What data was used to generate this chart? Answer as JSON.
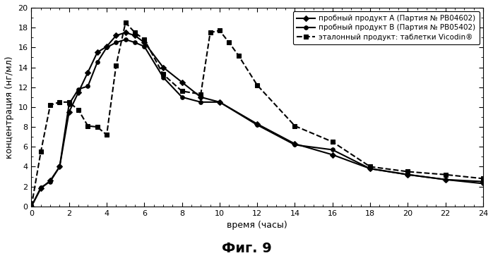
{
  "series_A": {
    "label": "пробный продукт А (Партия № РВ04602)",
    "x": [
      0,
      0.5,
      1,
      1.5,
      2,
      2.5,
      3,
      3.5,
      4,
      4.5,
      5,
      5.5,
      6,
      7,
      8,
      9,
      10,
      12,
      14,
      16,
      18,
      20,
      22,
      24
    ],
    "y": [
      0,
      1.8,
      2.6,
      4.0,
      9.5,
      11.5,
      13.5,
      15.5,
      16.1,
      17.2,
      17.5,
      17.2,
      16.5,
      14.0,
      12.5,
      11.0,
      10.5,
      8.3,
      6.3,
      5.2,
      3.8,
      3.2,
      2.7,
      2.5
    ],
    "color": "#000000",
    "linestyle": "-",
    "marker": "D",
    "markersize": 4,
    "linewidth": 1.5
  },
  "series_B": {
    "label": "пробный продукт В (Партия № РВ05402)",
    "x": [
      0,
      0.5,
      1,
      1.5,
      2,
      2.5,
      3,
      3.5,
      4,
      4.5,
      5,
      5.5,
      6,
      7,
      8,
      9,
      10,
      12,
      14,
      16,
      18,
      20,
      22,
      24
    ],
    "y": [
      0,
      1.9,
      2.5,
      4.0,
      10.3,
      11.8,
      12.1,
      14.5,
      16.0,
      16.5,
      16.8,
      16.5,
      16.1,
      13.0,
      11.0,
      10.5,
      10.5,
      8.2,
      6.2,
      5.7,
      3.8,
      3.2,
      2.7,
      2.3
    ],
    "color": "#000000",
    "linestyle": "-",
    "marker": "o",
    "markersize": 4,
    "linewidth": 1.5
  },
  "series_C": {
    "label": "эталонный продукт: таблетки Vicodin®",
    "x": [
      0,
      0.5,
      1,
      1.5,
      2,
      2.5,
      3,
      3.5,
      4,
      4.5,
      5,
      5.5,
      6,
      7,
      8,
      9,
      9.5,
      10,
      10.5,
      11,
      12,
      14,
      16,
      18,
      20,
      22,
      24
    ],
    "y": [
      0,
      5.5,
      10.2,
      10.5,
      10.5,
      9.7,
      8.1,
      8.0,
      7.2,
      14.2,
      18.5,
      17.5,
      16.8,
      13.3,
      11.6,
      11.3,
      17.5,
      17.7,
      16.5,
      15.2,
      12.2,
      8.1,
      6.5,
      4.0,
      3.5,
      3.2,
      2.8
    ],
    "color": "#000000",
    "linestyle": "--",
    "marker": "s",
    "markersize": 4,
    "linewidth": 1.5
  },
  "xlabel": "время (часы)",
  "ylabel": "концентрация (нг/мл)",
  "title": "Фиг. 9",
  "xlim": [
    0,
    24
  ],
  "ylim": [
    0,
    20
  ],
  "xticks": [
    0,
    2,
    4,
    6,
    8,
    10,
    12,
    14,
    16,
    18,
    20,
    22,
    24
  ],
  "yticks": [
    0,
    2,
    4,
    6,
    8,
    10,
    12,
    14,
    16,
    18,
    20
  ],
  "background_color": "#ffffff"
}
